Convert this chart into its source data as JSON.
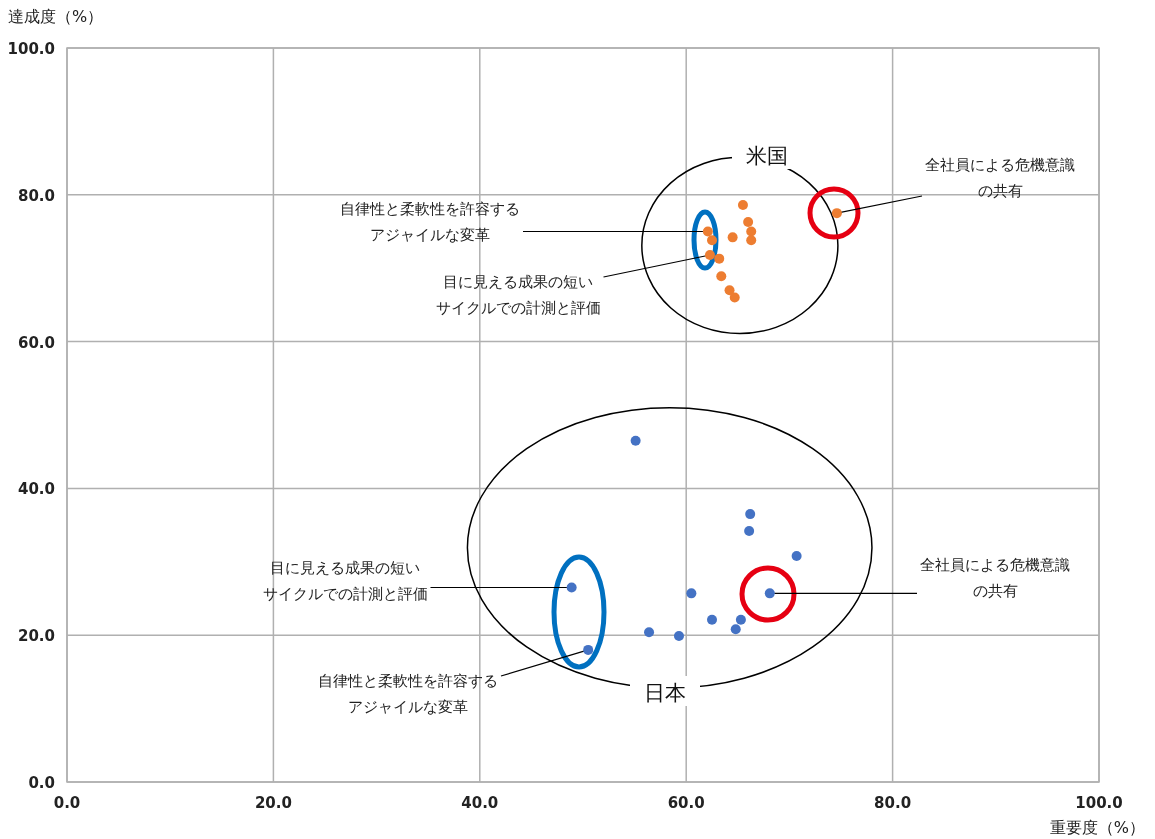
{
  "chart_data": {
    "type": "scatter",
    "xlabel": "重要度（%）",
    "ylabel": "達成度（%）",
    "xlim": [
      0,
      100
    ],
    "ylim": [
      0,
      100
    ],
    "xticks": [
      {
        "value": 0,
        "label": "0.0"
      },
      {
        "value": 20,
        "label": "20.0"
      },
      {
        "value": 40,
        "label": "40.0"
      },
      {
        "value": 60,
        "label": "60.0"
      },
      {
        "value": 80,
        "label": "80.0"
      },
      {
        "value": 100,
        "label": "100.0"
      }
    ],
    "yticks": [
      {
        "value": 0,
        "label": "0.0"
      },
      {
        "value": 20,
        "label": "20.0"
      },
      {
        "value": 40,
        "label": "40.0"
      },
      {
        "value": 60,
        "label": "60.0"
      },
      {
        "value": 80,
        "label": "80.0"
      },
      {
        "value": 100,
        "label": "100.0"
      }
    ],
    "grid": true,
    "marker": "circle",
    "series": [
      {
        "name": "米国",
        "color": "#ed7d31",
        "x": [
          65.5,
          66.0,
          66.3,
          66.3,
          64.5,
          62.1,
          62.5,
          62.3,
          63.2,
          63.4,
          64.2,
          64.7,
          74.6
        ],
        "values": [
          78.6,
          76.3,
          75.0,
          73.8,
          74.2,
          75.0,
          73.8,
          71.8,
          71.3,
          68.9,
          67.0,
          66.0,
          77.5
        ]
      },
      {
        "name": "日本",
        "color": "#4472c4",
        "x": [
          55.1,
          66.2,
          66.1,
          70.7,
          48.9,
          60.5,
          68.1,
          62.5,
          65.3,
          64.8,
          56.4,
          59.3,
          50.5
        ],
        "values": [
          46.5,
          36.5,
          34.2,
          30.8,
          26.5,
          25.7,
          25.7,
          22.1,
          22.1,
          20.8,
          20.4,
          19.9,
          18.0
        ]
      }
    ],
    "annotations": [
      {
        "text": "全社員による危機意識の共有",
        "x": 74.6,
        "y": 77.5
      },
      {
        "text": "自律性と柔軟性を許容するアジャイルな変革",
        "x": 62.1,
        "y": 75.0
      },
      {
        "text": "目に見える成果の短いサイクルでの計測と評価",
        "x": 62.3,
        "y": 71.8
      },
      {
        "text": "目に見える成果の短いサイクルでの計測と評価",
        "x": 48.9,
        "y": 26.5
      },
      {
        "text": "全社員による危機意識の共有",
        "x": 68.1,
        "y": 25.7
      },
      {
        "text": "自律性と柔軟性を許容するアジャイルな変革",
        "x": 50.5,
        "y": 18.0
      }
    ]
  }
}
